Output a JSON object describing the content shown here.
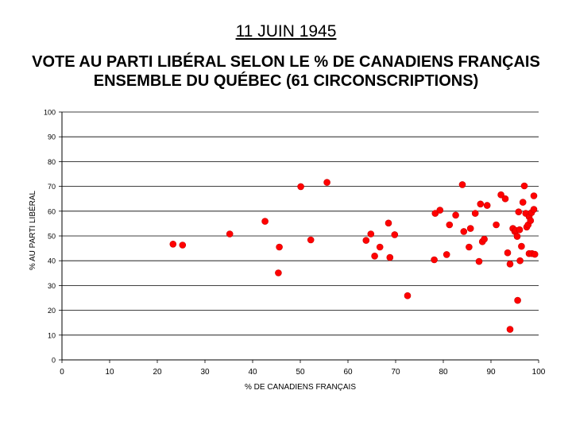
{
  "header": {
    "date": "11 JUIN 1945",
    "title_line1": "VOTE AU PARTI LIBÉRAL SELON LE % DE CANADIENS FRANÇAIS",
    "title_line2": "ENSEMBLE DU QUÉBEC (61 CIRCONSCRIPTIONS)"
  },
  "chart_data": {
    "type": "scatter",
    "title": "VOTE AU PARTI LIBÉRAL SELON LE % DE CANADIENS FRANÇAIS",
    "subtitle": "ENSEMBLE DU QUÉBEC (61 CIRCONSCRIPTIONS)",
    "xlabel": "% DE CANADIENS FRANÇAIS",
    "ylabel": "% AU PARTI LIBÉRAL",
    "xlim": [
      0,
      100
    ],
    "ylim": [
      0,
      100
    ],
    "xticks": [
      0,
      10,
      20,
      30,
      40,
      50,
      60,
      70,
      80,
      90,
      100
    ],
    "yticks": [
      0,
      10,
      20,
      30,
      40,
      50,
      60,
      70,
      80,
      90,
      100
    ],
    "grid": "horizontal",
    "legend": "none",
    "marker_color": "#ff0000",
    "points": [
      [
        23.3,
        46.7
      ],
      [
        25.3,
        46.3
      ],
      [
        35.2,
        50.8
      ],
      [
        42.6,
        55.9
      ],
      [
        45.4,
        35.1
      ],
      [
        45.6,
        45.5
      ],
      [
        50.1,
        69.9
      ],
      [
        52.2,
        48.4
      ],
      [
        55.6,
        71.6
      ],
      [
        63.8,
        48.2
      ],
      [
        64.8,
        50.8
      ],
      [
        65.6,
        41.9
      ],
      [
        66.7,
        45.5
      ],
      [
        68.5,
        55.2
      ],
      [
        68.8,
        41.3
      ],
      [
        69.8,
        50.5
      ],
      [
        72.5,
        25.9
      ],
      [
        78.1,
        40.4
      ],
      [
        78.3,
        59.1
      ],
      [
        79.3,
        60.4
      ],
      [
        80.7,
        42.5
      ],
      [
        81.3,
        54.5
      ],
      [
        82.6,
        58.4
      ],
      [
        84.0,
        70.7
      ],
      [
        84.3,
        51.8
      ],
      [
        85.4,
        45.5
      ],
      [
        85.7,
        53.0
      ],
      [
        86.7,
        59.1
      ],
      [
        87.5,
        39.7
      ],
      [
        87.8,
        62.9
      ],
      [
        88.2,
        47.7
      ],
      [
        88.6,
        48.7
      ],
      [
        89.2,
        62.3
      ],
      [
        91.1,
        54.5
      ],
      [
        92.1,
        66.6
      ],
      [
        93.0,
        65.0
      ],
      [
        93.5,
        43.2
      ],
      [
        94.0,
        38.7
      ],
      [
        94.0,
        12.3
      ],
      [
        94.6,
        53.0
      ],
      [
        95.0,
        51.8
      ],
      [
        95.2,
        52.2
      ],
      [
        95.5,
        49.8
      ],
      [
        95.6,
        24.0
      ],
      [
        95.8,
        59.7
      ],
      [
        96.0,
        52.5
      ],
      [
        96.1,
        40.0
      ],
      [
        96.4,
        45.8
      ],
      [
        96.7,
        63.6
      ],
      [
        97.0,
        70.2
      ],
      [
        97.3,
        59.1
      ],
      [
        97.5,
        53.6
      ],
      [
        97.8,
        54.5
      ],
      [
        98.0,
        42.9
      ],
      [
        98.0,
        57.8
      ],
      [
        98.3,
        56.2
      ],
      [
        98.5,
        59.4
      ],
      [
        98.6,
        42.9
      ],
      [
        99.0,
        60.7
      ],
      [
        99.0,
        66.2
      ],
      [
        99.2,
        42.6
      ]
    ]
  }
}
